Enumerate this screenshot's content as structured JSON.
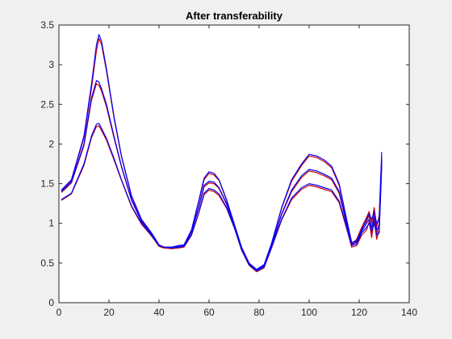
{
  "chart_data": {
    "type": "line",
    "title": "After transferability",
    "xlabel": "",
    "ylabel": "",
    "xlim": [
      0,
      140
    ],
    "ylim": [
      0,
      3.5
    ],
    "xticks": [
      0,
      20,
      40,
      60,
      80,
      100,
      120,
      140
    ],
    "yticks": [
      0,
      0.5,
      1,
      1.5,
      2,
      2.5,
      3,
      3.5
    ],
    "grid": false,
    "legend": "none",
    "colors": {
      "blue": "#0000ff",
      "red": "#cc0000",
      "axes_bg": "#ffffff",
      "figure_bg": "#f0f0f0"
    },
    "x": [
      1,
      5,
      10,
      13,
      15,
      16,
      17,
      19,
      22,
      25,
      29,
      33,
      37,
      40,
      42,
      45,
      48,
      50,
      53,
      56,
      58,
      60,
      62,
      64,
      67,
      70,
      73,
      76,
      79,
      82,
      85,
      89,
      93,
      97,
      100,
      103,
      106,
      109,
      112,
      115,
      117,
      119,
      121,
      123,
      124,
      125,
      126,
      127,
      128,
      129
    ],
    "series": [
      {
        "color": "#0000ff",
        "values": [
          1.42,
          1.55,
          2.1,
          2.75,
          3.25,
          3.38,
          3.3,
          2.95,
          2.35,
          1.85,
          1.35,
          1.05,
          0.88,
          0.73,
          0.7,
          0.7,
          0.72,
          0.73,
          0.92,
          1.3,
          1.57,
          1.65,
          1.63,
          1.55,
          1.3,
          1.0,
          0.7,
          0.5,
          0.42,
          0.48,
          0.75,
          1.2,
          1.55,
          1.75,
          1.87,
          1.85,
          1.8,
          1.72,
          1.5,
          1.05,
          0.76,
          0.78,
          0.92,
          1.05,
          1.12,
          1.05,
          1.15,
          1.0,
          1.05,
          1.9
        ]
      },
      {
        "color": "#0000ff",
        "values": [
          1.4,
          1.52,
          2.0,
          2.58,
          2.8,
          2.78,
          2.7,
          2.5,
          2.1,
          1.72,
          1.3,
          1.03,
          0.87,
          0.72,
          0.7,
          0.7,
          0.71,
          0.72,
          0.9,
          1.22,
          1.48,
          1.53,
          1.52,
          1.45,
          1.25,
          0.98,
          0.68,
          0.49,
          0.41,
          0.46,
          0.72,
          1.12,
          1.42,
          1.6,
          1.68,
          1.66,
          1.62,
          1.57,
          1.4,
          1.0,
          0.74,
          0.76,
          0.9,
          1.0,
          1.05,
          0.95,
          1.08,
          0.92,
          0.96,
          1.8
        ]
      },
      {
        "color": "#0000ff",
        "values": [
          1.3,
          1.38,
          1.75,
          2.1,
          2.25,
          2.26,
          2.2,
          2.07,
          1.82,
          1.55,
          1.22,
          1.0,
          0.85,
          0.72,
          0.7,
          0.69,
          0.7,
          0.71,
          0.86,
          1.15,
          1.38,
          1.44,
          1.42,
          1.37,
          1.2,
          0.96,
          0.67,
          0.48,
          0.4,
          0.45,
          0.7,
          1.05,
          1.32,
          1.45,
          1.5,
          1.48,
          1.45,
          1.42,
          1.28,
          0.95,
          0.72,
          0.74,
          0.88,
          0.95,
          1.0,
          0.9,
          1.0,
          0.85,
          0.88,
          1.75
        ]
      },
      {
        "color": "#cc0000",
        "values": [
          1.41,
          1.54,
          2.08,
          2.7,
          3.18,
          3.33,
          3.26,
          2.92,
          2.33,
          1.84,
          1.34,
          1.04,
          0.87,
          0.72,
          0.69,
          0.69,
          0.72,
          0.72,
          0.91,
          1.29,
          1.55,
          1.63,
          1.61,
          1.54,
          1.29,
          0.99,
          0.69,
          0.49,
          0.41,
          0.47,
          0.74,
          1.19,
          1.53,
          1.73,
          1.85,
          1.83,
          1.78,
          1.7,
          1.48,
          1.03,
          0.74,
          0.8,
          0.95,
          1.08,
          1.15,
          1.0,
          1.2,
          0.95,
          1.1,
          1.85
        ]
      },
      {
        "color": "#cc0000",
        "values": [
          1.39,
          1.51,
          1.98,
          2.55,
          2.76,
          2.74,
          2.67,
          2.47,
          2.08,
          1.71,
          1.29,
          1.02,
          0.86,
          0.71,
          0.69,
          0.69,
          0.7,
          0.71,
          0.89,
          1.21,
          1.46,
          1.51,
          1.5,
          1.44,
          1.24,
          0.97,
          0.67,
          0.48,
          0.4,
          0.45,
          0.71,
          1.11,
          1.4,
          1.58,
          1.66,
          1.64,
          1.6,
          1.55,
          1.38,
          0.98,
          0.72,
          0.78,
          0.93,
          1.03,
          1.1,
          0.88,
          1.12,
          0.86,
          1.0,
          1.78
        ]
      },
      {
        "color": "#cc0000",
        "values": [
          1.29,
          1.37,
          1.73,
          2.08,
          2.22,
          2.23,
          2.17,
          2.05,
          1.8,
          1.54,
          1.21,
          0.99,
          0.84,
          0.71,
          0.69,
          0.68,
          0.69,
          0.7,
          0.85,
          1.14,
          1.36,
          1.42,
          1.4,
          1.35,
          1.19,
          0.95,
          0.66,
          0.47,
          0.39,
          0.44,
          0.69,
          1.04,
          1.3,
          1.43,
          1.48,
          1.46,
          1.43,
          1.4,
          1.26,
          0.93,
          0.7,
          0.72,
          0.85,
          0.92,
          1.02,
          0.82,
          1.05,
          0.8,
          0.92,
          1.7
        ]
      }
    ]
  }
}
